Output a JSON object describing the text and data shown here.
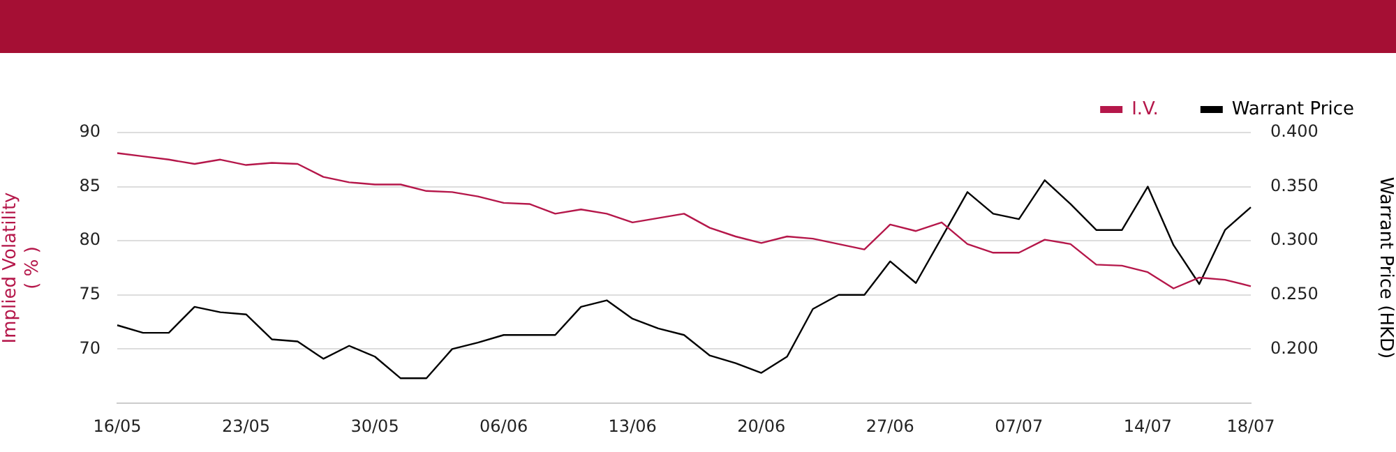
{
  "chart_data": {
    "type": "line",
    "ylabel": "Implied Volatility\n( % )",
    "y2label": "Warrant Price (HKD)",
    "categories": [
      "16/05",
      null,
      null,
      null,
      null,
      "23/05",
      null,
      null,
      null,
      null,
      "30/05",
      null,
      null,
      null,
      null,
      "06/06",
      null,
      null,
      null,
      null,
      "13/06",
      null,
      null,
      null,
      null,
      "20/06",
      null,
      null,
      null,
      null,
      "27/06",
      null,
      null,
      null,
      null,
      "07/07",
      null,
      null,
      null,
      null,
      "14/07",
      null,
      null,
      null,
      "18/07"
    ],
    "series": [
      {
        "name": "I.V.",
        "color": "#b5174a",
        "values": [
          88.1,
          87.8,
          87.5,
          87.1,
          87.5,
          87.0,
          87.2,
          87.1,
          85.9,
          85.4,
          85.2,
          85.2,
          84.6,
          84.5,
          84.1,
          83.5,
          83.4,
          82.5,
          82.9,
          82.5,
          81.7,
          82.1,
          82.5,
          81.2,
          80.4,
          79.8,
          80.4,
          80.2,
          79.7,
          79.2,
          81.5,
          80.9,
          81.7,
          79.7,
          78.9,
          78.9,
          80.1,
          79.7,
          77.8,
          77.7,
          77.1,
          75.6,
          76.6,
          76.4,
          75.8
        ]
      },
      {
        "name": "Warrant Price",
        "color": "#000000",
        "axis": "y2",
        "values": [
          0.222,
          0.215,
          0.215,
          0.239,
          0.234,
          0.232,
          0.209,
          0.207,
          0.191,
          0.203,
          0.193,
          0.173,
          0.173,
          0.2,
          0.206,
          0.213,
          0.213,
          0.213,
          0.239,
          0.245,
          0.228,
          0.219,
          0.213,
          0.194,
          0.187,
          0.178,
          0.193,
          0.237,
          0.25,
          0.25,
          0.281,
          0.261,
          0.303,
          0.345,
          0.325,
          0.32,
          0.356,
          0.334,
          0.31,
          0.31,
          0.35,
          0.296,
          0.26,
          0.31,
          0.331
        ]
      }
    ],
    "ylim": [
      65,
      90
    ],
    "yticks": [
      70,
      75,
      80,
      85,
      90
    ],
    "y2lim": [
      0.15,
      0.4
    ],
    "y2ticks": [
      {
        "value": 0.2,
        "label": "0.200"
      },
      {
        "value": 0.25,
        "label": "0.250"
      },
      {
        "value": 0.3,
        "label": "0.300"
      },
      {
        "value": 0.35,
        "label": "0.350"
      },
      {
        "value": 0.4,
        "label": "0.400"
      }
    ],
    "grid": "y",
    "legend": "top right",
    "marker": "none",
    "line_style": "solid"
  }
}
